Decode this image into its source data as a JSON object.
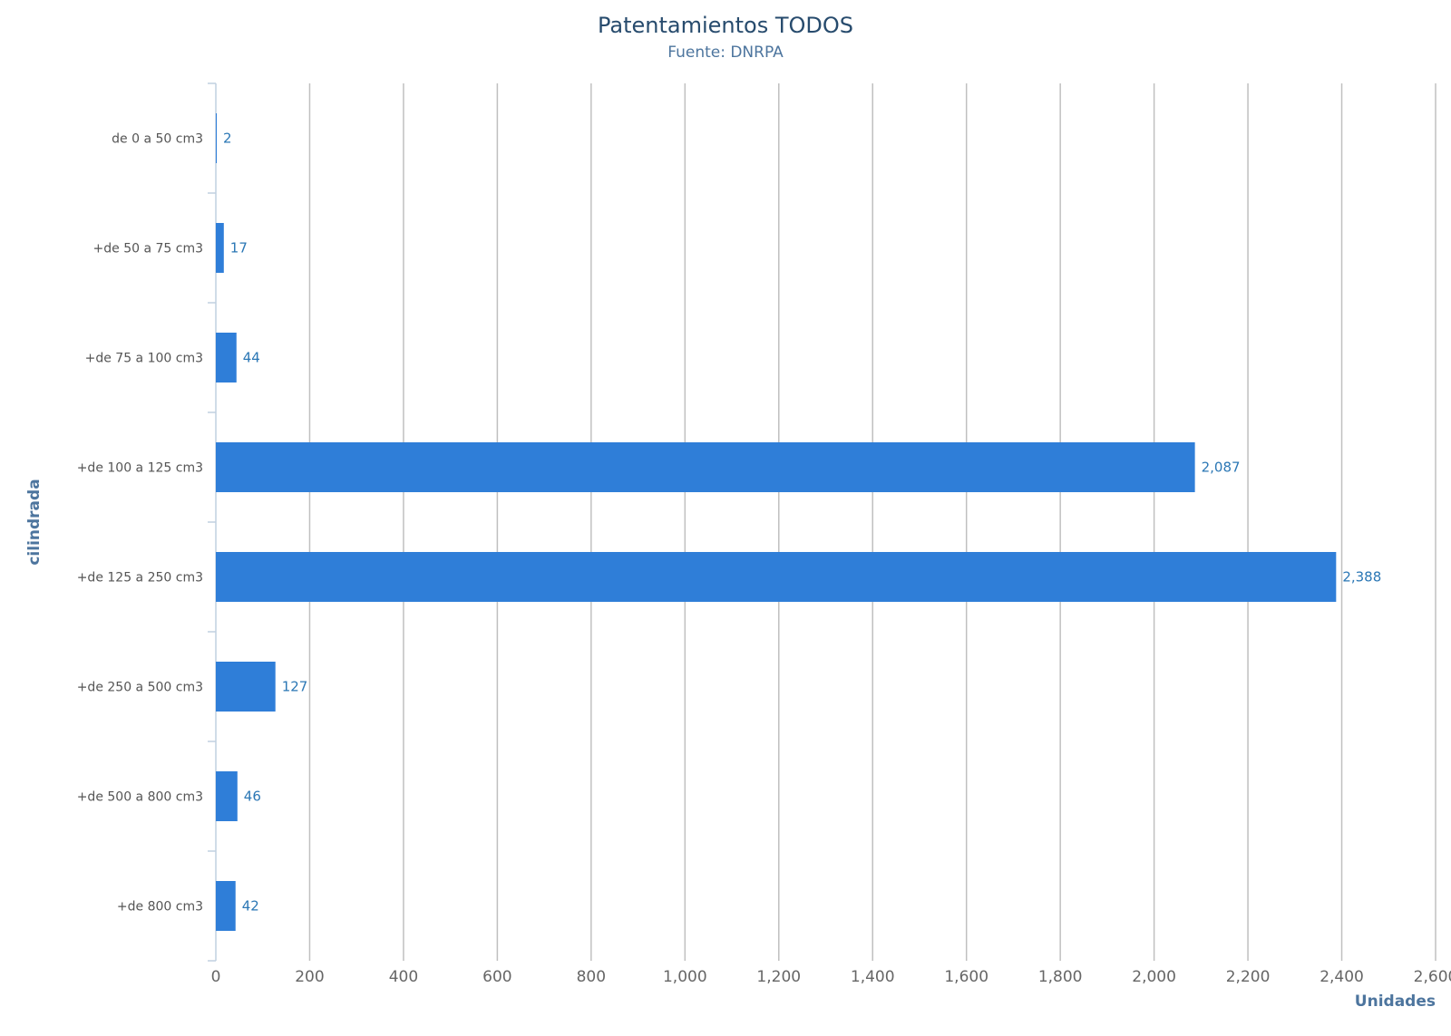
{
  "chart_data": {
    "type": "bar",
    "orientation": "horizontal",
    "title": "Patentamientos TODOS",
    "subtitle": "Fuente: DNRPA",
    "xlabel": "Unidades",
    "ylabel": "cilindrada",
    "categories": [
      "de 0 a 50 cm3",
      "+de 50 a 75 cm3",
      "+de 75 a 100 cm3",
      "+de 100 a 125 cm3",
      "+de 125 a 250 cm3",
      "+de 250 a 500 cm3",
      "+de 500 a 800 cm3",
      "+de 800 cm3"
    ],
    "values": [
      2,
      17,
      44,
      2087,
      2388,
      127,
      46,
      42
    ],
    "data_labels": [
      "2",
      "17",
      "44",
      "2,087",
      "2,388",
      "127",
      "46",
      "42"
    ],
    "xlim": [
      0,
      2600
    ],
    "ticks": [
      0,
      200,
      400,
      600,
      800,
      1000,
      1200,
      1400,
      1600,
      1800,
      2000,
      2200,
      2400,
      2600
    ],
    "tick_labels": [
      "0",
      "200",
      "400",
      "600",
      "800",
      "1,000",
      "1,200",
      "1,400",
      "1,600",
      "1,800",
      "2,000",
      "2,200",
      "2,400",
      "2,600"
    ],
    "grid": true,
    "bar_color": "#2f7ed8",
    "label_color": "#2b77b5"
  }
}
